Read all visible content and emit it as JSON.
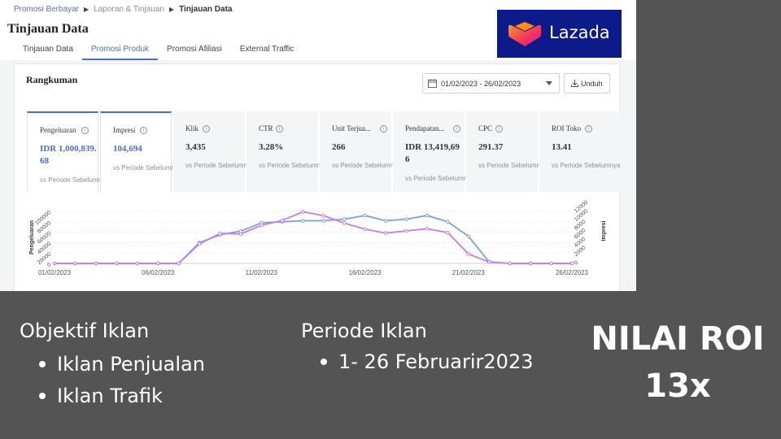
{
  "breadcrumb": {
    "items": [
      "Promosi Berbayar",
      "Laporan & Tinjauan",
      "Tinjauan Data"
    ]
  },
  "page_title": "Tinjauan Data",
  "tabs": [
    {
      "label": "Tinjauan Data",
      "active": false
    },
    {
      "label": "Promosi Produk",
      "active": true
    },
    {
      "label": "Promosi Afiliasi",
      "active": false
    },
    {
      "label": "External Traffic",
      "active": false
    }
  ],
  "logo": {
    "text": "Lazada"
  },
  "summary": {
    "title": "Rangkuman",
    "date_range": "01/02/2023 - 26/02/2023",
    "download_label": "Unduh"
  },
  "metrics": [
    {
      "label": "Pengeluaran",
      "value": "IDR 1,000,839.68",
      "compare": "vs Periode Sebelumnya",
      "selected": true
    },
    {
      "label": "Impresi",
      "value": "104,694",
      "compare": "vs Periode Sebelumnya",
      "selected": true
    },
    {
      "label": "Klik",
      "value": "3,435",
      "compare": "vs Periode Sebelumnya",
      "selected": false
    },
    {
      "label": "CTR",
      "value": "3.28%",
      "compare": "vs Periode Sebelumnya",
      "selected": false
    },
    {
      "label": "Unit Terjua...",
      "value": "266",
      "compare": "vs Periode Sebelumnya",
      "selected": false
    },
    {
      "label": "Pendapatan...",
      "value": "IDR 13,419,696",
      "compare": "vs Periode Sebelumnya",
      "selected": false
    },
    {
      "label": "CPC",
      "value": "291.37",
      "compare": "vs Periode Sebelumnya",
      "selected": false
    },
    {
      "label": "ROI Toko",
      "value": "13.41",
      "compare": "vs Periode Sebelumnya",
      "selected": false
    }
  ],
  "chart_data": {
    "type": "line",
    "x": [
      "01/02/2023",
      "02/02/2023",
      "03/02/2023",
      "04/02/2023",
      "05/02/2023",
      "06/02/2023",
      "07/02/2023",
      "08/02/2023",
      "09/02/2023",
      "10/02/2023",
      "11/02/2023",
      "12/02/2023",
      "13/02/2023",
      "14/02/2023",
      "15/02/2023",
      "16/02/2023",
      "17/02/2023",
      "18/02/2023",
      "19/02/2023",
      "20/02/2023",
      "21/02/2023",
      "22/02/2023",
      "23/02/2023",
      "24/02/2023",
      "25/02/2023",
      "26/02/2023"
    ],
    "x_tick_labels": [
      "01/02/2023",
      "06/02/2023",
      "11/02/2023",
      "16/02/2023",
      "21/02/2023",
      "26/02/2023"
    ],
    "series": [
      {
        "name": "Pengeluaran",
        "axis": "left",
        "color": "#7ba0e0",
        "values": [
          0,
          0,
          0,
          0,
          0,
          0,
          0,
          40000,
          55000,
          62000,
          78000,
          80000,
          82000,
          82000,
          85000,
          92000,
          82000,
          85000,
          92000,
          80000,
          52000,
          3000,
          0,
          0,
          0,
          0
        ]
      },
      {
        "name": "Impresi",
        "axis": "right",
        "color": "#c77be8",
        "values": [
          0,
          0,
          0,
          0,
          0,
          0,
          0,
          4500,
          6900,
          6800,
          8800,
          9900,
          11900,
          11000,
          9300,
          7900,
          7000,
          7500,
          8000,
          7100,
          2200,
          300,
          0,
          0,
          0,
          0
        ]
      }
    ],
    "ylabel": "Pengeluaran",
    "y2label": "Impresi",
    "ylim": [
      0,
      100000
    ],
    "y2lim": [
      0,
      12000
    ],
    "yticks": [
      "0",
      "20000",
      "40000",
      "60000",
      "80000",
      "100000"
    ],
    "y2ticks": [
      "0",
      "2000",
      "4000",
      "6000",
      "8000",
      "10000",
      "12000"
    ],
    "grid": true
  },
  "slide": {
    "objective_heading": "Objektif Iklan",
    "objectives": [
      "Iklan Penjualan",
      "Iklan Trafik"
    ],
    "period_heading": "Periode Iklan",
    "periods": [
      "1- 26 Februarir2023"
    ],
    "roi_label": "NILAI ROI",
    "roi_value": "13x"
  }
}
